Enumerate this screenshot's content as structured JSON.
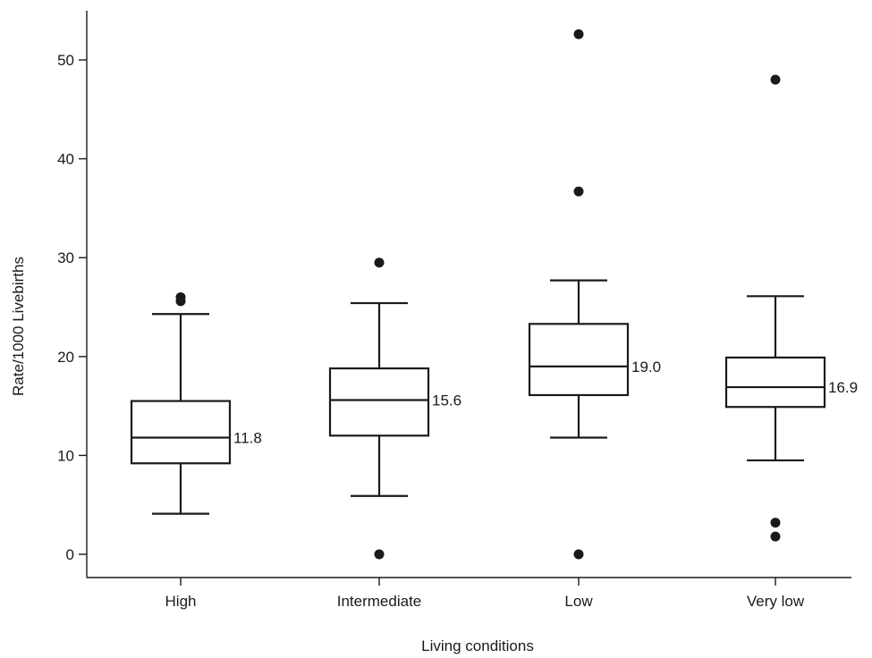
{
  "chart_data": {
    "type": "boxplot",
    "title": "",
    "xlabel": "Living conditions",
    "ylabel": "Rate/1000 Livebirths",
    "ylim": [
      0,
      55
    ],
    "yticks": [
      0,
      10,
      20,
      30,
      40,
      50
    ],
    "grid": false,
    "legend": "none",
    "categories": [
      "High",
      "Intermediate",
      "Low",
      "Very low"
    ],
    "boxes": [
      {
        "category": "High",
        "min": 4.1,
        "q1": 9.2,
        "median": 11.8,
        "q3": 15.5,
        "max": 24.3,
        "outliers": [
          25.6,
          26.0
        ],
        "median_label": "11.8"
      },
      {
        "category": "Intermediate",
        "min": 5.9,
        "q1": 12.0,
        "median": 15.6,
        "q3": 18.8,
        "max": 25.4,
        "outliers": [
          0.0,
          29.5
        ],
        "median_label": "15.6"
      },
      {
        "category": "Low",
        "min": 11.8,
        "q1": 16.1,
        "median": 19.0,
        "q3": 23.3,
        "max": 27.7,
        "outliers": [
          0.0,
          36.7,
          52.6
        ],
        "median_label": "19.0"
      },
      {
        "category": "Very low",
        "min": 9.5,
        "q1": 14.9,
        "median": 16.9,
        "q3": 19.9,
        "max": 26.1,
        "outliers": [
          1.8,
          3.2,
          48.0
        ],
        "median_label": "16.9"
      }
    ]
  }
}
